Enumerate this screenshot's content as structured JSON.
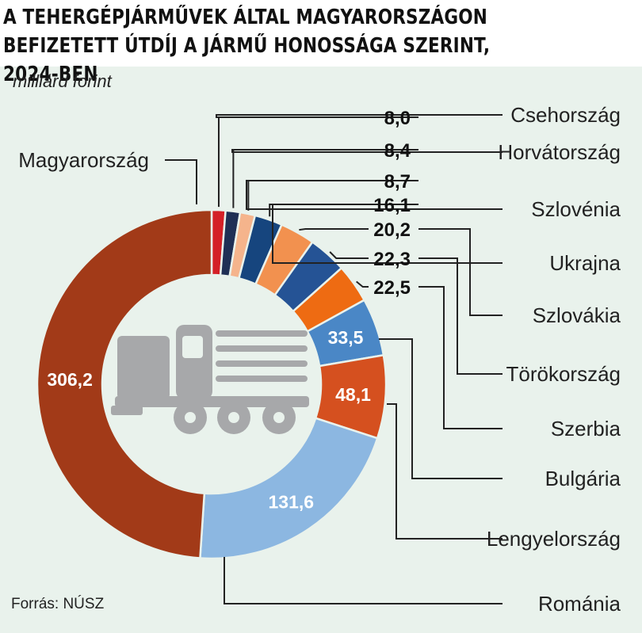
{
  "header": {
    "title_line1": "A TEHERGÉPJÁRMŰVEK ÁLTAL MAGYARORSZÁGON",
    "title_line2": "BEFIZETETT ÚTDÍJ A JÁRMŰ HONOSSÁGA SZERINT, 2024-BEN",
    "unit": "milliárd forint"
  },
  "footer": {
    "source": "Forrás: NÚSZ"
  },
  "icons": {
    "center": "truck-icon"
  },
  "chart_data": {
    "type": "pie",
    "donut": true,
    "title": "A TEHERGÉPJÁRMŰVEK ÁLTAL MAGYARORSZÁGON BEFIZETETT ÚTDÍJ A JÁRMŰ HONOSSÁGA SZERINT, 2024-BEN",
    "unit": "milliárd forint",
    "slices": [
      {
        "label": "Csehország",
        "value": 8.0,
        "value_text": "8,0",
        "color": "#d42027"
      },
      {
        "label": "Horvátország",
        "value": 8.4,
        "value_text": "8,4",
        "color": "#1f2f55"
      },
      {
        "label": "Szlovénia",
        "value": 8.7,
        "value_text": "8,7",
        "color": "#f5b48c"
      },
      {
        "label": "Ukrajna",
        "value": 16.1,
        "value_text": "16,1",
        "color": "#16457e"
      },
      {
        "label": "Szlovákia",
        "value": 20.2,
        "value_text": "20,2",
        "color": "#f2914f"
      },
      {
        "label": "Törökország",
        "value": 22.3,
        "value_text": "22,3",
        "color": "#255395"
      },
      {
        "label": "Szerbia",
        "value": 22.5,
        "value_text": "22,5",
        "color": "#ee6b12"
      },
      {
        "label": "Bulgária",
        "value": 33.5,
        "value_text": "33,5",
        "color": "#4a87c6"
      },
      {
        "label": "Lengyelország",
        "value": 48.1,
        "value_text": "48,1",
        "color": "#d5501f"
      },
      {
        "label": "Románia",
        "value": 131.6,
        "value_text": "131,6",
        "color": "#8cb7e1"
      },
      {
        "label": "Magyarország",
        "value": 306.2,
        "value_text": "306,2",
        "color": "#a23a18"
      }
    ]
  }
}
